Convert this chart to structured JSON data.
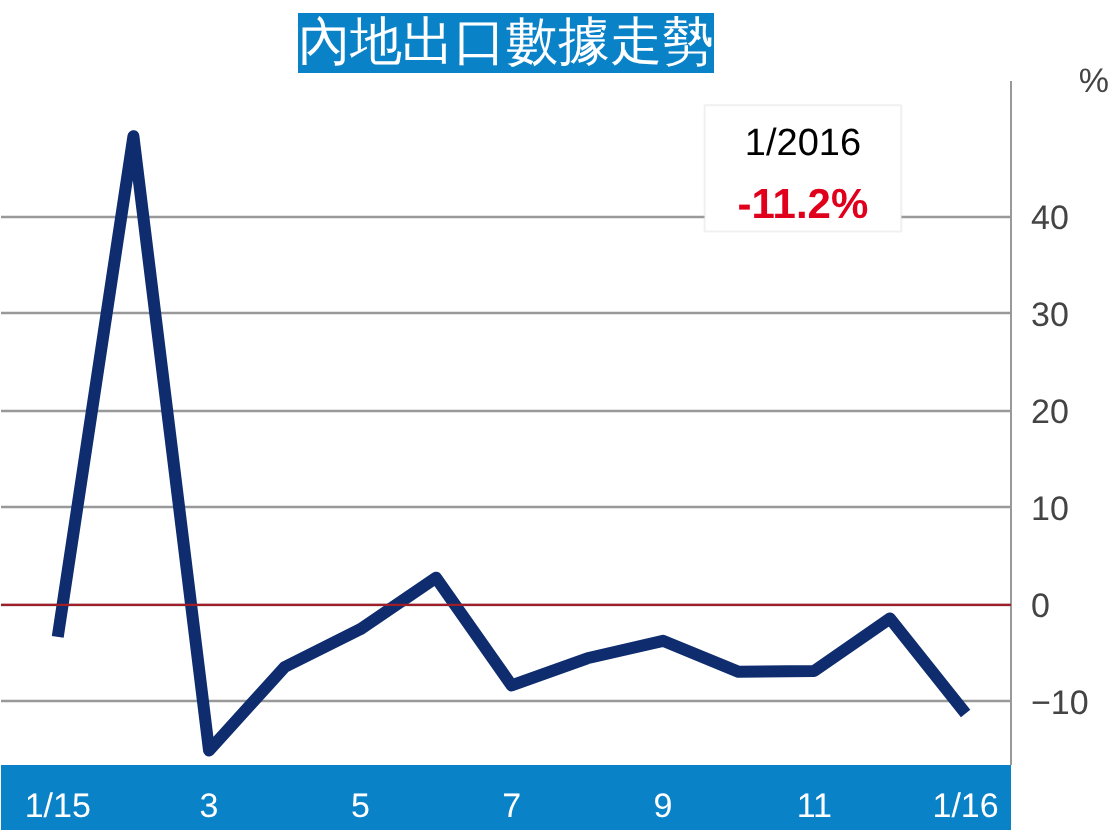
{
  "chart_data": {
    "type": "line",
    "title": "內地出口數據走勢",
    "ylabel": "%",
    "categories": [
      "1/15",
      null,
      "3",
      null,
      "5",
      null,
      "7",
      null,
      "9",
      null,
      "11",
      null,
      "1/16"
    ],
    "series": [
      {
        "color": "#0f2d6e",
        "values": [
          -3.3,
          48.3,
          -15,
          -6.4,
          -2.5,
          2.8,
          -8.3,
          -5.5,
          -3.7,
          -6.9,
          -6.8,
          -1.4,
          -11.2
        ]
      }
    ],
    "ylim": [
      -16.5,
      54
    ],
    "yticks": [
      -10,
      0,
      10,
      20,
      30,
      40
    ],
    "grid": "y",
    "ref_lines": [
      {
        "axis": "y",
        "value": 0,
        "color": "#a01e28"
      }
    ],
    "annotations": [
      "1/2016",
      "-11.2%"
    ],
    "marker": "none",
    "line_style": "solid"
  }
}
